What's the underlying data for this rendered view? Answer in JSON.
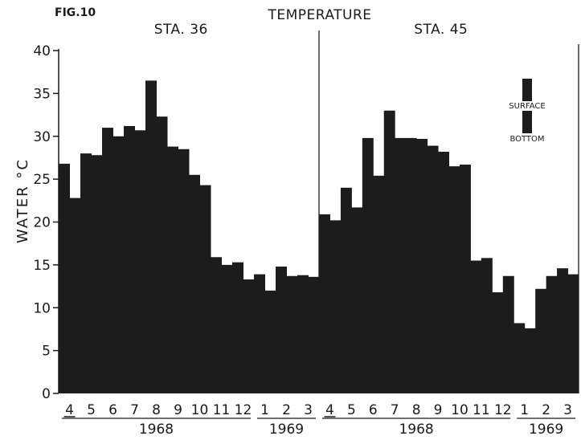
{
  "figure_label": "FIG.10",
  "chart_data": {
    "type": "bar",
    "title": "TEMPERATURE",
    "ylabel": "WATER °C",
    "ylim": [
      0,
      40
    ],
    "yticks": [
      0,
      5,
      10,
      15,
      20,
      25,
      30,
      35,
      40
    ],
    "grid": false,
    "legend": {
      "placement": "top-right",
      "entries": [
        "SURFACE",
        "BOTTOM"
      ]
    },
    "colors": {
      "bar": "#1c1c1c",
      "axis": "#1a1a1a"
    },
    "panels": [
      {
        "station": "STA. 36",
        "months": [
          "4",
          "5",
          "6",
          "7",
          "8",
          "9",
          "10",
          "11",
          "12",
          "1",
          "2",
          "3"
        ],
        "years": [
          {
            "label": "1968",
            "start_index": 1,
            "end_index": 8
          },
          {
            "label": "1969",
            "start_index": 9,
            "end_index": 11
          }
        ],
        "series": [
          {
            "name": "SURFACE",
            "values": [
              26.8,
              28.0,
              31.0,
              31.2,
              36.5,
              28.8,
              25.5,
              15.9,
              15.3,
              13.9,
              14.8,
              13.8
            ]
          },
          {
            "name": "BOTTOM",
            "values": [
              22.8,
              27.8,
              30.0,
              30.7,
              32.3,
              28.5,
              24.3,
              15.0,
              13.3,
              12.0,
              13.7,
              13.6
            ]
          }
        ]
      },
      {
        "station": "STA. 45",
        "months": [
          "4",
          "5",
          "6",
          "7",
          "8",
          "9",
          "10",
          "11",
          "12",
          "1",
          "2",
          "3"
        ],
        "years": [
          {
            "label": "1968",
            "start_index": 1,
            "end_index": 8
          },
          {
            "label": "1969",
            "start_index": 9,
            "end_index": 11
          }
        ],
        "series": [
          {
            "name": "SURFACE",
            "values": [
              20.9,
              24.0,
              29.8,
              33.0,
              29.8,
              28.9,
              26.5,
              15.5,
              11.8,
              8.2,
              12.2,
              14.6
            ]
          },
          {
            "name": "BOTTOM",
            "values": [
              20.2,
              21.7,
              25.4,
              29.8,
              29.7,
              28.2,
              26.7,
              15.8,
              13.7,
              7.6,
              13.7,
              13.9
            ]
          }
        ]
      }
    ]
  }
}
